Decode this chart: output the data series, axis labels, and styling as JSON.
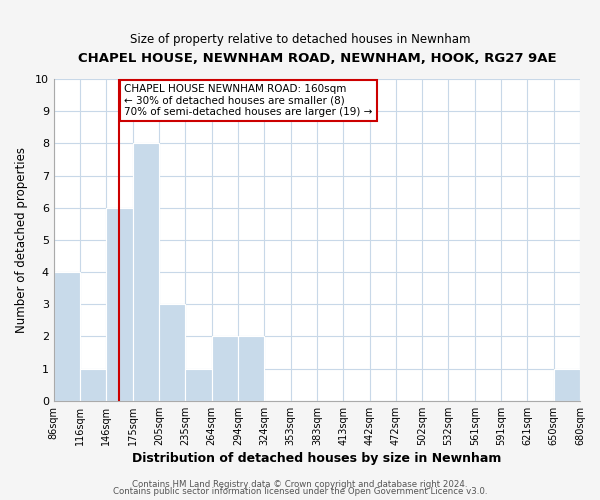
{
  "title": "CHAPEL HOUSE, NEWNHAM ROAD, NEWNHAM, HOOK, RG27 9AE",
  "subtitle": "Size of property relative to detached houses in Newnham",
  "xlabel": "Distribution of detached houses by size in Newnham",
  "ylabel": "Number of detached properties",
  "bar_color": "#c8daea",
  "bar_edge_color": "#ffffff",
  "grid_color": "#c8d8e8",
  "bins": [
    "86sqm",
    "116sqm",
    "146sqm",
    "175sqm",
    "205sqm",
    "235sqm",
    "264sqm",
    "294sqm",
    "324sqm",
    "353sqm",
    "383sqm",
    "413sqm",
    "442sqm",
    "472sqm",
    "502sqm",
    "532sqm",
    "561sqm",
    "591sqm",
    "621sqm",
    "650sqm",
    "680sqm"
  ],
  "counts": [
    4,
    1,
    6,
    8,
    3,
    1,
    2,
    2,
    0,
    0,
    0,
    0,
    0,
    0,
    0,
    0,
    0,
    0,
    0,
    1
  ],
  "ylim": [
    0,
    10
  ],
  "yticks": [
    0,
    1,
    2,
    3,
    4,
    5,
    6,
    7,
    8,
    9,
    10
  ],
  "marker_label": "CHAPEL HOUSE NEWNHAM ROAD: 160sqm",
  "annotation_line1": "← 30% of detached houses are smaller (8)",
  "annotation_line2": "70% of semi-detached houses are larger (19) →",
  "annotation_box_color": "#ffffff",
  "annotation_box_edge": "#cc0000",
  "marker_line_color": "#cc0000",
  "footer1": "Contains HM Land Registry data © Crown copyright and database right 2024.",
  "footer2": "Contains public sector information licensed under the Open Government Licence v3.0.",
  "background_color": "#ffffff",
  "fig_bg_color": "#f5f5f5"
}
